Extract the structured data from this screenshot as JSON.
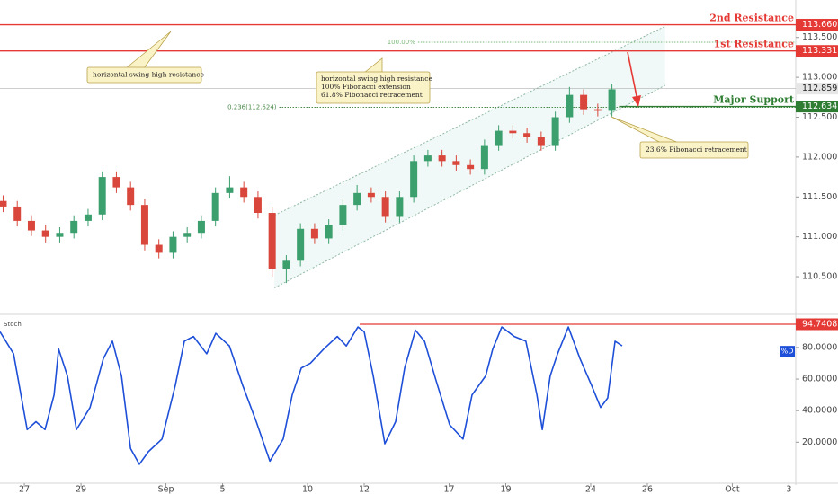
{
  "chart_data": [
    {
      "type": "candlestick",
      "x": [
        -0.75,
        -0.25,
        0.25,
        0.75,
        1.25,
        1.75,
        2.25,
        2.75,
        3.25,
        3.75,
        4.25,
        4.75,
        5.25,
        5.75,
        6.25,
        6.75,
        7.25,
        7.75,
        8.25,
        8.75,
        9.25,
        9.75,
        10.25,
        10.75,
        11.25,
        11.75,
        12.25,
        12.75,
        13.25,
        13.75,
        14.25,
        14.75,
        15.25,
        15.75,
        16.25,
        16.75,
        17.25,
        17.75,
        18.25,
        18.75,
        19.25,
        19.75,
        20.25,
        20.75
      ],
      "open": [
        111.45,
        111.38,
        111.2,
        111.08,
        111.0,
        111.05,
        111.2,
        111.28,
        111.75,
        111.62,
        111.4,
        110.9,
        110.8,
        111.0,
        111.05,
        111.2,
        111.55,
        111.62,
        111.5,
        111.3,
        110.6,
        110.7,
        111.1,
        110.98,
        111.15,
        111.4,
        111.55,
        111.5,
        111.25,
        111.5,
        111.95,
        112.02,
        111.95,
        111.9,
        111.85,
        112.15,
        112.33,
        112.3,
        112.25,
        112.15,
        112.5,
        112.78,
        112.6,
        112.58
      ],
      "high": [
        111.52,
        111.45,
        111.27,
        111.15,
        111.12,
        111.27,
        111.35,
        111.82,
        111.82,
        111.69,
        111.47,
        110.97,
        111.07,
        111.12,
        111.27,
        111.62,
        111.76,
        111.69,
        111.57,
        111.37,
        110.77,
        111.17,
        111.17,
        111.22,
        111.47,
        111.65,
        111.62,
        111.57,
        111.57,
        112.02,
        112.09,
        112.09,
        112.02,
        111.97,
        112.22,
        112.4,
        112.4,
        112.37,
        112.32,
        112.57,
        112.88,
        112.85,
        112.67,
        112.92
      ],
      "low": [
        111.31,
        111.13,
        111.01,
        110.93,
        110.93,
        110.98,
        111.13,
        111.21,
        111.55,
        111.33,
        110.83,
        110.73,
        110.73,
        110.93,
        110.98,
        111.13,
        111.48,
        111.43,
        111.23,
        110.5,
        110.42,
        110.63,
        110.91,
        110.91,
        111.08,
        111.33,
        111.43,
        111.18,
        111.18,
        111.43,
        111.88,
        111.88,
        111.83,
        111.78,
        111.78,
        112.08,
        112.23,
        112.18,
        112.08,
        112.08,
        112.43,
        112.53,
        112.51,
        112.51
      ],
      "close": [
        111.38,
        111.2,
        111.08,
        111.0,
        111.05,
        111.2,
        111.28,
        111.75,
        111.62,
        111.4,
        110.9,
        110.8,
        111.0,
        111.05,
        111.2,
        111.55,
        111.62,
        111.5,
        111.3,
        110.6,
        110.7,
        111.1,
        110.98,
        111.15,
        111.4,
        111.55,
        111.5,
        111.25,
        111.5,
        111.95,
        112.02,
        111.95,
        111.9,
        111.85,
        112.15,
        112.33,
        112.3,
        112.25,
        112.15,
        112.5,
        112.78,
        112.6,
        112.58,
        112.85
      ],
      "up_color": "#3c9f6e",
      "down_color": "#d9473c",
      "xlim": [
        -0.86,
        27.24
      ],
      "xticks": [
        {
          "value": 0,
          "label": "27"
        },
        {
          "value": 2,
          "label": "29"
        },
        {
          "value": 5,
          "label": "Sep"
        },
        {
          "value": 7,
          "label": "5"
        },
        {
          "value": 10,
          "label": "10"
        },
        {
          "value": 12,
          "label": "12"
        },
        {
          "value": 15,
          "label": "17"
        },
        {
          "value": 17,
          "label": "19"
        },
        {
          "value": 20,
          "label": "24"
        },
        {
          "value": 22,
          "label": "26"
        },
        {
          "value": 25,
          "label": "Oct"
        },
        {
          "value": 27,
          "label": "3"
        }
      ],
      "ylim": [
        110.05,
        113.97
      ],
      "yticks": [
        {
          "value": 110.5,
          "label": "110.500"
        },
        {
          "value": 111,
          "label": "111.000"
        },
        {
          "value": 111.5,
          "label": "111.500"
        },
        {
          "value": 112,
          "label": "112.000"
        },
        {
          "value": 112.5,
          "label": "112.500"
        },
        {
          "value": 113,
          "label": "113.000"
        },
        {
          "value": 113.5,
          "label": "113.500"
        }
      ],
      "levels": [
        {
          "name": "2nd Resistance",
          "value": 113.66,
          "value_label": "113.660",
          "color": "#e53935"
        },
        {
          "name": "1st Resistance",
          "value": 113.331,
          "value_label": "113.331",
          "color": "#e53935"
        },
        {
          "name": "Major Support",
          "value": 112.634,
          "value_label": "112.634",
          "color": "#2e7d32",
          "x_start": 21.0
        }
      ],
      "last_price": {
        "value": 112.859,
        "value_label": "112.859",
        "color": "#9e9e9e"
      },
      "fib_lines": [
        {
          "label": "100.00%",
          "value": 113.44,
          "x_start": 13.9,
          "color": "#7cb87c"
        },
        {
          "label": "0.236(112.624)",
          "value": 112.624,
          "x_start": 9.0,
          "color": "#4a8a4a"
        }
      ],
      "channel": {
        "x": [
          8.83,
          22.63
        ],
        "upper": [
          111.27,
          113.64
        ],
        "lower": [
          110.36,
          112.9
        ]
      },
      "annotations": [
        {
          "lines": [
            "horizontal swing high resistance"
          ]
        },
        {
          "lines": [
            "horizontal swing high resistance",
            "100% Fibonacci extension",
            "61.8% Fibonacci retracement"
          ]
        },
        {
          "lines": [
            "23.6% Fibonacci retracement"
          ]
        }
      ]
    },
    {
      "type": "line",
      "title": "Stoch",
      "series": [
        {
          "name": "%D",
          "color": "#1e4fd8",
          "x": [
            -0.86,
            -0.38,
            0.1,
            0.41,
            0.73,
            1.05,
            1.21,
            1.52,
            1.84,
            2.32,
            2.79,
            3.11,
            3.43,
            3.75,
            4.06,
            4.38,
            4.86,
            5.33,
            5.65,
            5.97,
            6.44,
            6.76,
            7.24,
            7.71,
            8.19,
            8.67,
            9.14,
            9.46,
            9.78,
            10.1,
            10.57,
            11.05,
            11.37,
            11.78,
            12.0,
            12.32,
            12.73,
            13.11,
            13.43,
            13.81,
            14.13,
            14.54,
            15.02,
            15.49,
            15.81,
            16.29,
            16.54,
            16.86,
            17.3,
            17.71,
            18.1,
            18.29,
            18.57,
            18.83,
            19.21,
            19.62,
            20.03,
            20.35,
            20.6,
            20.86,
            21.11
          ],
          "values": [
            90,
            76,
            28,
            33,
            28,
            50,
            79,
            62,
            28,
            42,
            73,
            84,
            62,
            16,
            6,
            14,
            22,
            56,
            84,
            87,
            76,
            89,
            81,
            56,
            33,
            8,
            22,
            50,
            67,
            70,
            79,
            87,
            81,
            93,
            90,
            62,
            19,
            33,
            67,
            91,
            84,
            59,
            31,
            22,
            50,
            62,
            79,
            93,
            87,
            84,
            50,
            28,
            62,
            76,
            93,
            73,
            56,
            42,
            48,
            84,
            81
          ]
        }
      ],
      "ylim": [
        -6,
        101
      ],
      "yticks": [
        {
          "value": 20,
          "label": "20.0000"
        },
        {
          "value": 40,
          "label": "40.0000"
        },
        {
          "value": 60,
          "label": "60.0000"
        },
        {
          "value": 80,
          "label": "80.0000"
        }
      ],
      "level": {
        "value": 94.7408,
        "label": "94.7408",
        "x_start": 11.84,
        "color": "#e53935"
      }
    }
  ]
}
